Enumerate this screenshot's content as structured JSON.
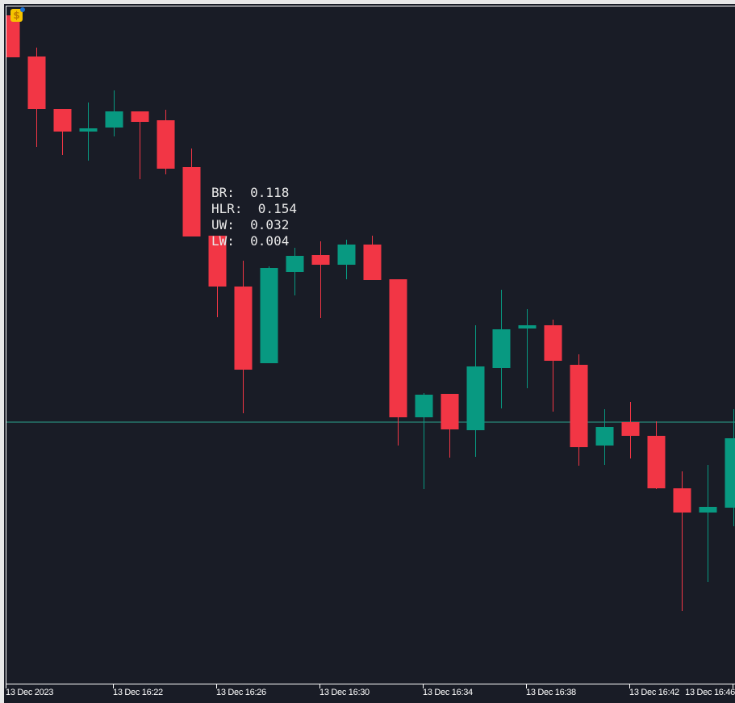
{
  "chart_data": {
    "type": "candlestick",
    "title": "",
    "xlabel": "",
    "ylabel": "",
    "colors": {
      "background": "#191c26",
      "bull": "#089981",
      "bear": "#f23645",
      "line": "#2aa38f",
      "text": "#ffffff"
    },
    "grid": false,
    "ylim": [
      5.3,
      89.3
    ],
    "note_units": "relative price (no price scale shown)",
    "x_tick_labels": [
      "13 Dec 2023",
      "13 Dec 16:22",
      "13 Dec 16:26",
      "13 Dec 16:30",
      "13 Dec 16:34",
      "13 Dec 16:38",
      "13 Dec 16:42",
      "13 Dec 16:46"
    ],
    "candles": [
      {
        "o": 88.2,
        "h": 88.2,
        "l": 83.0,
        "c": 83.0
      },
      {
        "o": 83.1,
        "h": 84.2,
        "l": 71.9,
        "c": 76.6
      },
      {
        "o": 76.6,
        "h": 76.6,
        "l": 70.9,
        "c": 73.8
      },
      {
        "o": 73.8,
        "h": 77.4,
        "l": 70.2,
        "c": 74.2
      },
      {
        "o": 74.3,
        "h": 78.9,
        "l": 73.2,
        "c": 76.3
      },
      {
        "o": 76.3,
        "h": 76.3,
        "l": 67.9,
        "c": 75.0
      },
      {
        "o": 75.2,
        "h": 76.5,
        "l": 68.5,
        "c": 69.2
      },
      {
        "o": 69.4,
        "h": 71.7,
        "l": 60.8,
        "c": 60.8
      },
      {
        "o": 60.9,
        "h": 60.9,
        "l": 50.8,
        "c": 54.6
      },
      {
        "o": 54.6,
        "h": 57.8,
        "l": 38.9,
        "c": 44.3
      },
      {
        "o": 45.1,
        "h": 57.1,
        "l": 45.1,
        "c": 56.9
      },
      {
        "o": 56.4,
        "h": 59.4,
        "l": 53.5,
        "c": 58.4
      },
      {
        "o": 58.5,
        "h": 60.2,
        "l": 50.7,
        "c": 57.3
      },
      {
        "o": 57.3,
        "h": 60.4,
        "l": 55.5,
        "c": 59.8
      },
      {
        "o": 59.8,
        "h": 60.9,
        "l": 55.4,
        "c": 55.4
      },
      {
        "o": 55.5,
        "h": 55.5,
        "l": 34.9,
        "c": 38.4
      },
      {
        "o": 38.4,
        "h": 41.4,
        "l": 29.5,
        "c": 41.2
      },
      {
        "o": 41.3,
        "h": 41.3,
        "l": 33.4,
        "c": 36.9
      },
      {
        "o": 36.8,
        "h": 49.8,
        "l": 33.5,
        "c": 44.7
      },
      {
        "o": 44.5,
        "h": 54.2,
        "l": 39.5,
        "c": 49.3
      },
      {
        "o": 49.4,
        "h": 51.8,
        "l": 42.0,
        "c": 49.8
      },
      {
        "o": 49.8,
        "h": 50.5,
        "l": 39.1,
        "c": 45.4
      },
      {
        "o": 44.9,
        "h": 46.2,
        "l": 32.4,
        "c": 34.7
      },
      {
        "o": 34.9,
        "h": 39.4,
        "l": 32.5,
        "c": 37.2
      },
      {
        "o": 37.8,
        "h": 40.3,
        "l": 33.3,
        "c": 36.1
      },
      {
        "o": 36.1,
        "h": 37.9,
        "l": 29.5,
        "c": 29.6
      },
      {
        "o": 29.6,
        "h": 31.7,
        "l": 14.4,
        "c": 26.6
      },
      {
        "o": 26.6,
        "h": 32.5,
        "l": 18.0,
        "c": 27.3
      },
      {
        "o": 27.2,
        "h": 39.4,
        "l": 24.9,
        "c": 35.8
      }
    ],
    "horizontal_line": 37.8
  },
  "info_panel": {
    "br": "BR:  0.118",
    "hlr": "HLR:  0.154",
    "uw": "UW:  0.032",
    "lw": "LW:  0.004"
  },
  "icons": {
    "expert_badge": "dollar-badge-icon",
    "badge_text": "$"
  }
}
